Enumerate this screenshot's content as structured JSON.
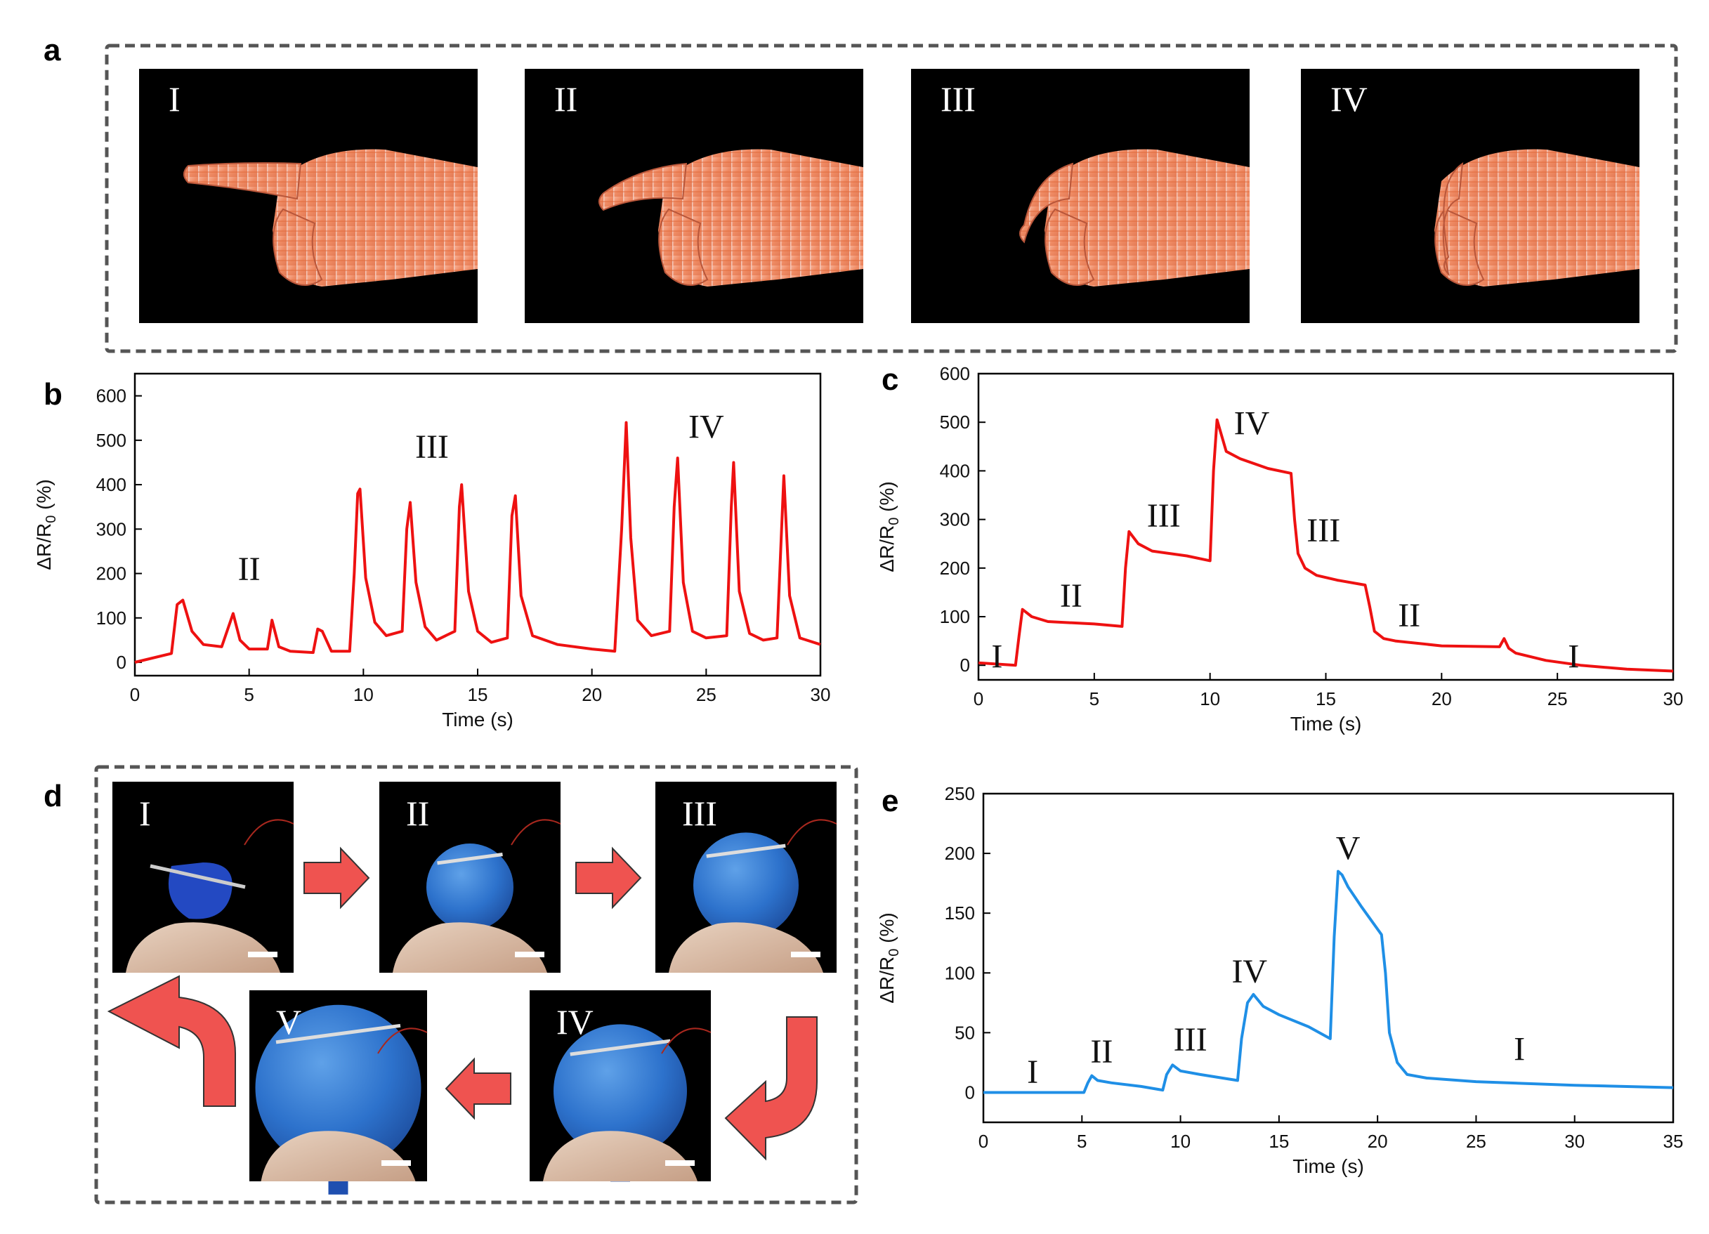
{
  "panels": {
    "a": "a",
    "b": "b",
    "c": "c",
    "d": "d",
    "e": "e"
  },
  "colors": {
    "red": "#ee1111",
    "blue": "#1f8fe6",
    "arrow": "#ef5350",
    "frame": "#555555"
  },
  "panel_a": {
    "labels": [
      "I",
      "II",
      "III",
      "IV"
    ]
  },
  "panel_d": {
    "labels": [
      "I",
      "II",
      "III",
      "IV",
      "V"
    ]
  },
  "chart_data": [
    {
      "id": "b",
      "type": "line",
      "xlabel": "Time (s)",
      "ylabel": "ΔR/R0 (%)",
      "xlim": [
        0,
        30
      ],
      "ylim": [
        -30,
        650
      ],
      "xticks": [
        0,
        5,
        10,
        15,
        20,
        25,
        30
      ],
      "yticks": [
        0,
        100,
        200,
        300,
        400,
        500,
        600
      ],
      "series": [
        {
          "color": "#ee1111",
          "x": [
            0,
            1.6,
            1.85,
            2.1,
            2.5,
            3.0,
            3.8,
            4.1,
            4.3,
            4.6,
            5.0,
            5.8,
            6.0,
            6.3,
            6.8,
            7.8,
            8.0,
            8.2,
            8.6,
            9.4,
            9.6,
            9.75,
            9.85,
            10.1,
            10.5,
            11.0,
            11.7,
            11.9,
            12.05,
            12.3,
            12.7,
            13.2,
            14.0,
            14.2,
            14.3,
            14.6,
            15.0,
            15.6,
            16.3,
            16.5,
            16.65,
            16.9,
            17.4,
            18.5,
            20.0,
            21.0,
            21.3,
            21.5,
            21.7,
            22.0,
            22.6,
            23.4,
            23.6,
            23.75,
            24.0,
            24.4,
            25.0,
            25.9,
            26.1,
            26.2,
            26.45,
            26.9,
            27.5,
            28.1,
            28.3,
            28.4,
            28.65,
            29.1,
            30.0
          ],
          "y": [
            0,
            20,
            130,
            140,
            70,
            40,
            35,
            80,
            110,
            50,
            30,
            30,
            95,
            35,
            25,
            22,
            75,
            70,
            25,
            25,
            200,
            380,
            390,
            190,
            90,
            60,
            70,
            300,
            360,
            180,
            80,
            50,
            70,
            350,
            400,
            160,
            70,
            45,
            55,
            330,
            375,
            150,
            60,
            40,
            30,
            25,
            300,
            540,
            280,
            95,
            60,
            70,
            350,
            460,
            180,
            70,
            55,
            60,
            350,
            450,
            160,
            65,
            50,
            55,
            300,
            420,
            150,
            55,
            40
          ]
        }
      ],
      "annotations": [
        {
          "text": "II",
          "x": 5.0,
          "y": 185
        },
        {
          "text": "III",
          "x": 13.0,
          "y": 460
        },
        {
          "text": "IV",
          "x": 25.0,
          "y": 505
        }
      ]
    },
    {
      "id": "c",
      "type": "line",
      "xlabel": "Time (s)",
      "ylabel": "ΔR/R0 (%)",
      "xlim": [
        0,
        30
      ],
      "ylim": [
        -30,
        600
      ],
      "xticks": [
        0,
        5,
        10,
        15,
        20,
        25,
        30
      ],
      "yticks": [
        0,
        100,
        200,
        300,
        400,
        500,
        600
      ],
      "series": [
        {
          "color": "#1ee1111",
          "x": [
            0,
            1.6,
            1.75,
            1.9,
            2.3,
            3.0,
            5.0,
            6.2,
            6.35,
            6.5,
            6.9,
            7.5,
            9.0,
            10.0,
            10.15,
            10.3,
            10.7,
            11.3,
            12.5,
            13.5,
            13.65,
            13.8,
            14.1,
            14.6,
            15.5,
            16.7,
            16.9,
            17.1,
            17.5,
            18.0,
            20.0,
            22.5,
            22.7,
            22.9,
            23.2,
            24.5,
            26.0,
            28.0,
            30.0
          ],
          "y": [
            5,
            0,
            60,
            115,
            100,
            90,
            85,
            80,
            200,
            275,
            250,
            235,
            225,
            215,
            400,
            505,
            440,
            425,
            405,
            395,
            300,
            230,
            200,
            185,
            175,
            165,
            120,
            70,
            55,
            50,
            40,
            38,
            55,
            35,
            25,
            10,
            0,
            -8,
            -12
          ]
        }
      ],
      "annotations": [
        {
          "text": "I",
          "x": 0.8,
          "y": -5
        },
        {
          "text": "II",
          "x": 4.0,
          "y": 120
        },
        {
          "text": "III",
          "x": 8.0,
          "y": 285
        },
        {
          "text": "IV",
          "x": 11.8,
          "y": 475
        },
        {
          "text": "III",
          "x": 14.9,
          "y": 255
        },
        {
          "text": "II",
          "x": 18.6,
          "y": 80
        },
        {
          "text": "I",
          "x": 25.7,
          "y": -5
        }
      ]
    },
    {
      "id": "e",
      "type": "line",
      "xlabel": "Time (s)",
      "ylabel": "ΔR/R0 (%)",
      "xlim": [
        0,
        35
      ],
      "ylim": [
        -25,
        250
      ],
      "xticks": [
        0,
        5,
        10,
        15,
        20,
        25,
        30,
        35
      ],
      "yticks": [
        0,
        50,
        100,
        150,
        200,
        250
      ],
      "series": [
        {
          "color": "#1f8fe6",
          "x": [
            0,
            2.0,
            4.0,
            5.1,
            5.3,
            5.5,
            5.8,
            6.5,
            8.0,
            9.1,
            9.3,
            9.6,
            10.0,
            11.0,
            12.9,
            13.1,
            13.4,
            13.7,
            14.2,
            15.0,
            16.5,
            17.6,
            17.8,
            18.0,
            18.2,
            18.5,
            19.2,
            20.2,
            20.4,
            20.6,
            21.0,
            21.5,
            22.5,
            25.0,
            30.0,
            35.0
          ],
          "y": [
            0,
            0,
            0,
            0,
            8,
            14,
            10,
            8,
            5,
            2,
            15,
            23,
            18,
            15,
            10,
            45,
            75,
            82,
            72,
            65,
            55,
            45,
            130,
            185,
            182,
            172,
            155,
            132,
            100,
            50,
            25,
            15,
            12,
            9,
            6,
            4
          ]
        }
      ],
      "annotations": [
        {
          "text": "I",
          "x": 2.5,
          "y": 8
        },
        {
          "text": "II",
          "x": 6.0,
          "y": 25
        },
        {
          "text": "III",
          "x": 10.5,
          "y": 35
        },
        {
          "text": "IV",
          "x": 13.5,
          "y": 92
        },
        {
          "text": "V",
          "x": 18.5,
          "y": 195
        },
        {
          "text": "I",
          "x": 27.2,
          "y": 27
        }
      ]
    }
  ]
}
